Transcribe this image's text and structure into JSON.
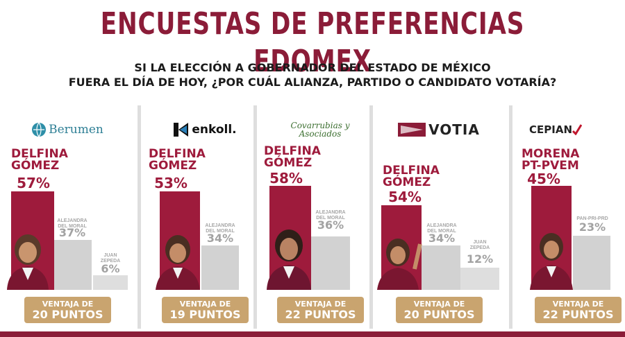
{
  "title": "ENCUESTAS DE PREFERENCIAS EDOMEX",
  "question": {
    "line1": "SI LA ELECCIÓN A GOBERNADOR DEL ESTADO DE MÉXICO",
    "line2": "FUERA EL DÍA DE HOY, ¿POR CUÁL ALIANZA, PARTIDO O CANDIDATO VOTARÍA?"
  },
  "colors": {
    "title": "#8b1c38",
    "lead": "#9e1b3c",
    "second": "#d2d2d2",
    "badge": "#c9a46f"
  },
  "pollsters": [
    {
      "logo": "Berumen",
      "logo_icon": "globe-icon",
      "leader": [
        "DELFINA",
        "GÓMEZ"
      ],
      "lead_pct": "57%",
      "second_name": [
        "ALEJANDRA",
        "DEL MORAL"
      ],
      "second_pct": "37%",
      "third_name": [
        "JUAN",
        "ZEPEDA"
      ],
      "third_pct": "6%",
      "advantage_label": "VENTAJA DE",
      "advantage_points": "20 PUNTOS"
    },
    {
      "logo": "enkoll.",
      "logo_icon": "enkoll-mark-icon",
      "leader": [
        "DELFINA",
        "GÓMEZ"
      ],
      "lead_pct": "53%",
      "second_name": [
        "ALEJANDRA",
        "DEL MORAL"
      ],
      "second_pct": "34%",
      "advantage_label": "VENTAJA DE",
      "advantage_points": "19 PUNTOS"
    },
    {
      "logo": "Covarrubias y Asociados",
      "logo_icon": "script-logo",
      "leader": [
        "DELFINA",
        "GÓMEZ"
      ],
      "lead_pct": "58%",
      "second_name": [
        "ALEJANDRA",
        "DEL MORAL"
      ],
      "second_pct": "36%",
      "advantage_label": "VENTAJA DE",
      "advantage_points": "22 PUNTOS"
    },
    {
      "logo": "VOTIA",
      "logo_icon": "votia-mark-icon",
      "leader": [
        "DELFINA",
        "GÓMEZ"
      ],
      "lead_pct": "54%",
      "second_name": [
        "ALEJANDRA",
        "DEL MORAL"
      ],
      "second_pct": "34%",
      "third_name": [
        "JUAN",
        "ZEPEDA"
      ],
      "third_pct": "12%",
      "advantage_label": "VENTAJA DE",
      "advantage_points": "20 PUNTOS"
    },
    {
      "logo": "CEPIAN",
      "logo_icon": "check-mark-icon",
      "leader": [
        "MORENA",
        "PT-PVEM"
      ],
      "lead_pct": "45%",
      "second_name": [
        "PAN-PRI-PRD"
      ],
      "second_pct": "23%",
      "advantage_label": "VENTAJA DE",
      "advantage_points": "22 PUNTOS"
    }
  ],
  "chart_data": {
    "type": "bar",
    "title": "ENCUESTAS DE PREFERENCIAS EDOMEX",
    "categories": [
      "Berumen",
      "enkoll.",
      "Covarrubias y Asociados",
      "VOTIA",
      "CEPIAN"
    ],
    "series": [
      {
        "name": "DELFINA GÓMEZ / MORENA PT-PVEM",
        "values": [
          57,
          53,
          58,
          54,
          45
        ]
      },
      {
        "name": "ALEJANDRA DEL MORAL / PAN-PRI-PRD",
        "values": [
          37,
          34,
          36,
          34,
          23
        ]
      },
      {
        "name": "JUAN ZEPEDA",
        "values": [
          6,
          null,
          null,
          12,
          null
        ]
      }
    ],
    "ylim": [
      0,
      100
    ],
    "grid": false
  }
}
